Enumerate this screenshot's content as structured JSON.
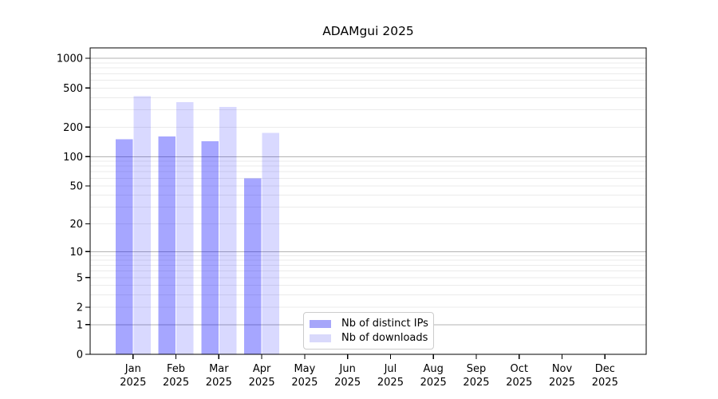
{
  "chart_data": {
    "type": "bar",
    "title": "ADAMgui 2025",
    "yscale": "log1p",
    "ylim": [
      0,
      1280
    ],
    "grid": "horizontal major+minor",
    "legend_position": "bottom-center-inside",
    "y_ticks": [
      0,
      1,
      2,
      5,
      10,
      20,
      50,
      100,
      200,
      500,
      1000
    ],
    "y_major_gridlines": [
      1,
      10,
      100,
      1000
    ],
    "categories": [
      "Jan",
      "Feb",
      "Mar",
      "Apr",
      "May",
      "Jun",
      "Jul",
      "Aug",
      "Sep",
      "Oct",
      "Nov",
      "Dec"
    ],
    "category_year": "2025",
    "series": [
      {
        "name": "Nb of distinct IPs",
        "color": "rgba(0,0,255,0.35)",
        "legend_color": "#a6a6fa",
        "values": [
          150,
          160,
          143,
          60,
          null,
          null,
          null,
          null,
          null,
          null,
          null,
          null
        ]
      },
      {
        "name": "Nb of downloads",
        "color": "rgba(0,0,255,0.15)",
        "legend_color": "#d9d9fb",
        "values": [
          415,
          360,
          320,
          175,
          null,
          null,
          null,
          null,
          null,
          null,
          null,
          null
        ]
      }
    ],
    "colors": {
      "major_grid": "#b3b3b3",
      "minor_grid": "#ebebeb",
      "axis": "#000000",
      "text": "#000000",
      "background": "#ffffff"
    }
  }
}
